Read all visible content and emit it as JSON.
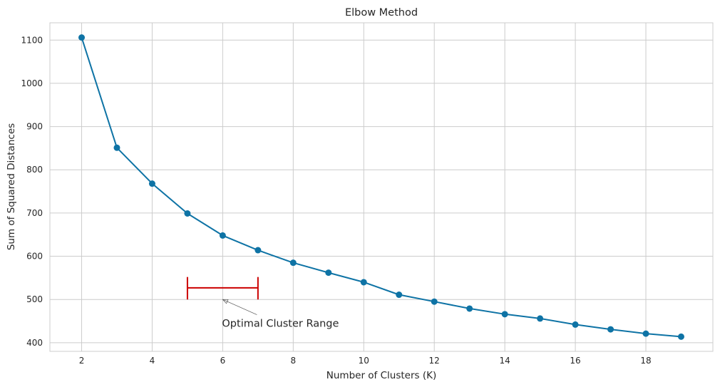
{
  "chart_data": {
    "type": "line",
    "title": "Elbow Method",
    "xlabel": "Number of Clusters (K)",
    "ylabel": "Sum of Squared Distances",
    "xlim": [
      1.1,
      19.9
    ],
    "ylim": [
      380,
      1140
    ],
    "xticks": [
      2,
      4,
      6,
      8,
      10,
      12,
      14,
      16,
      18
    ],
    "yticks": [
      400,
      500,
      600,
      700,
      800,
      900,
      1000,
      1100
    ],
    "grid": true,
    "series": [
      {
        "x": [
          2,
          3,
          4,
          5,
          6,
          7,
          8,
          9,
          10,
          11,
          12,
          13,
          14,
          15,
          16,
          17,
          18,
          19
        ],
        "values": [
          1106,
          851,
          768,
          699,
          648,
          614,
          585,
          562,
          540,
          511,
          495,
          479,
          466,
          456,
          442,
          431,
          421,
          414
        ],
        "color": "#0e73a5"
      }
    ],
    "range_marker": {
      "x_start": 5,
      "x_end": 7,
      "y": 527,
      "cap_low": 500,
      "cap_high": 552,
      "color": "#cc0000"
    },
    "annotation": {
      "text": "Optimal Cluster Range",
      "arrow_tip": [
        6,
        500
      ],
      "text_anchor": [
        6,
        445
      ]
    }
  }
}
